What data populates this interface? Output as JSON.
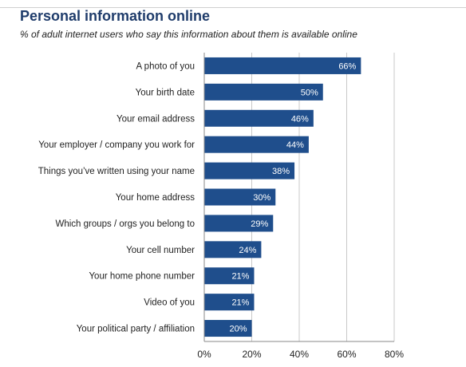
{
  "chart_data": {
    "type": "bar",
    "orientation": "horizontal",
    "title": "Personal information online",
    "subtitle": "% of adult internet users who say this information about them is available online",
    "categories": [
      "A photo of you",
      "Your birth date",
      "Your email address",
      "Your employer / company you work for",
      "Things you’ve written using your name",
      "Your home address",
      "Which groups / orgs you belong to",
      "Your cell number",
      "Your home phone number",
      "Video of you",
      "Your political party / affiliation"
    ],
    "values": [
      66,
      50,
      46,
      44,
      38,
      30,
      29,
      24,
      21,
      21,
      20
    ],
    "value_labels": [
      "66%",
      "50%",
      "46%",
      "44%",
      "38%",
      "30%",
      "29%",
      "24%",
      "21%",
      "21%",
      "20%"
    ],
    "xlim": [
      0,
      80
    ],
    "xticks": [
      0,
      20,
      40,
      60,
      80
    ],
    "xtick_labels": [
      "0%",
      "20%",
      "40%",
      "60%",
      "80%"
    ],
    "grid": true,
    "legend": "none",
    "bar_color": "#1f4e8c",
    "title_color": "#1f3c6b"
  }
}
